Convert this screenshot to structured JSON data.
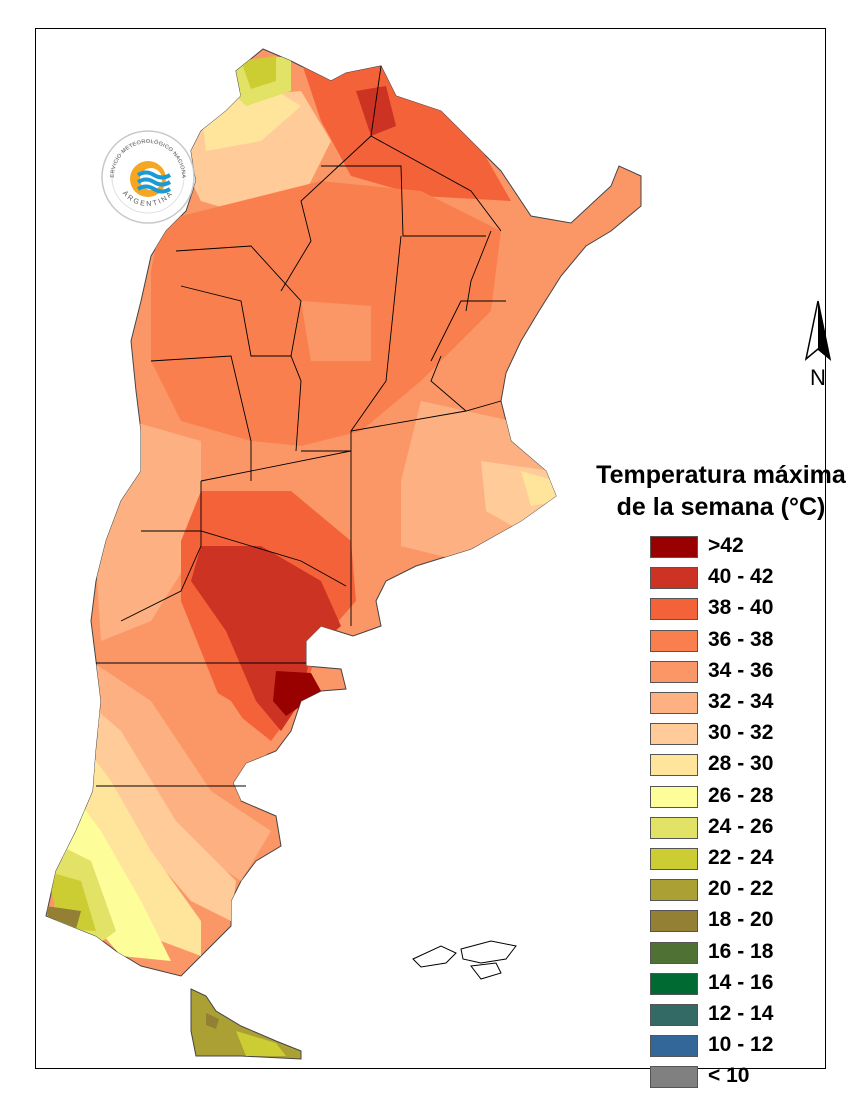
{
  "map": {
    "legend_title": [
      "Temperatura máxima",
      "de la semana (°C)"
    ],
    "north_label": "N",
    "legend": [
      {
        "label": ">42",
        "color": "#990000"
      },
      {
        "label": "40 - 42",
        "color": "#cc3322"
      },
      {
        "label": "38 - 40",
        "color": "#f4623a"
      },
      {
        "label": "36 - 38",
        "color": "#f9804e"
      },
      {
        "label": "34 - 36",
        "color": "#fb9767"
      },
      {
        "label": "32 - 34",
        "color": "#fdb082"
      },
      {
        "label": "30 - 32",
        "color": "#ffcb98"
      },
      {
        "label": "28 - 30",
        "color": "#ffe59c"
      },
      {
        "label": "26 - 28",
        "color": "#fdfd9a"
      },
      {
        "label": "24 - 26",
        "color": "#e2e266"
      },
      {
        "label": "22 - 24",
        "color": "#cccc33"
      },
      {
        "label": "20 - 22",
        "color": "#aaa033"
      },
      {
        "label": "18 - 20",
        "color": "#938034"
      },
      {
        "label": "16 - 18",
        "color": "#4f7234"
      },
      {
        "label": "14 - 16",
        "color": "#006a33"
      },
      {
        "label": "12 - 14",
        "color": "#336a66"
      },
      {
        "label": "10 - 12",
        "color": "#336699"
      },
      {
        "label": "< 10",
        "color": "#808080"
      }
    ],
    "logo_text": {
      "top": "SERVICIO METEOROLÓGICO NACIONAL",
      "bottom": "ARGENTINA"
    },
    "land_color": "#fb9767",
    "border_color": "#000000"
  }
}
